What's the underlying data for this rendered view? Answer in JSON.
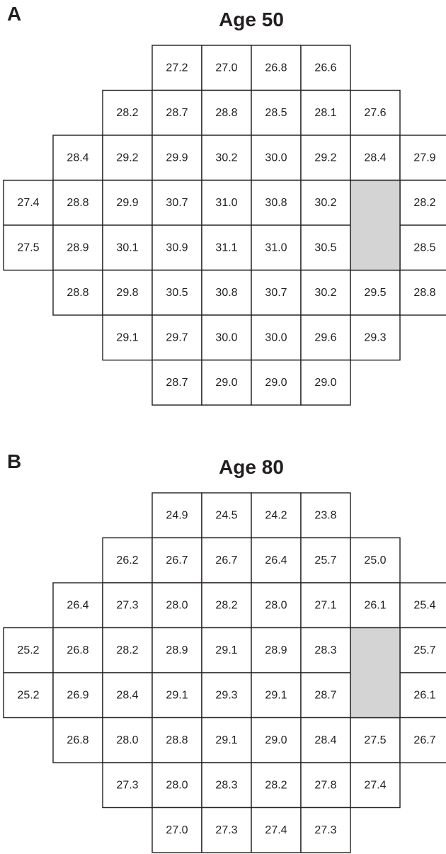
{
  "panels": [
    {
      "letter": "A",
      "title": "Age 50",
      "rows": [
        [
          null,
          null,
          null,
          "27.2",
          "27.0",
          "26.8",
          "26.6",
          null,
          null
        ],
        [
          null,
          null,
          "28.2",
          "28.7",
          "28.8",
          "28.5",
          "28.1",
          "27.6",
          null
        ],
        [
          null,
          "28.4",
          "29.2",
          "29.9",
          "30.2",
          "30.0",
          "29.2",
          "28.4",
          "27.9"
        ],
        [
          "27.4",
          "28.8",
          "29.9",
          "30.7",
          "31.0",
          "30.8",
          "30.2",
          "",
          "28.2"
        ],
        [
          "27.5",
          "28.9",
          "30.1",
          "30.9",
          "31.1",
          "31.0",
          "30.5",
          "",
          "28.5"
        ],
        [
          null,
          "28.8",
          "29.8",
          "30.5",
          "30.8",
          "30.7",
          "30.2",
          "29.5",
          "28.8"
        ],
        [
          null,
          null,
          "29.1",
          "29.7",
          "30.0",
          "30.0",
          "29.6",
          "29.3",
          null
        ],
        [
          null,
          null,
          null,
          "28.7",
          "29.0",
          "29.0",
          "29.0",
          null,
          null
        ]
      ]
    },
    {
      "letter": "B",
      "title": "Age 80",
      "rows": [
        [
          null,
          null,
          null,
          "24.9",
          "24.5",
          "24.2",
          "23.8",
          null,
          null
        ],
        [
          null,
          null,
          "26.2",
          "26.7",
          "26.7",
          "26.4",
          "25.7",
          "25.0",
          null
        ],
        [
          null,
          "26.4",
          "27.3",
          "28.0",
          "28.2",
          "28.0",
          "27.1",
          "26.1",
          "25.4"
        ],
        [
          "25.2",
          "26.8",
          "28.2",
          "28.9",
          "29.1",
          "28.9",
          "28.3",
          "",
          "25.7"
        ],
        [
          "25.2",
          "26.9",
          "28.4",
          "29.1",
          "29.3",
          "29.1",
          "28.7",
          "",
          "26.1"
        ],
        [
          null,
          "26.8",
          "28.0",
          "28.8",
          "29.1",
          "29.0",
          "28.4",
          "27.5",
          "26.7"
        ],
        [
          null,
          null,
          "27.3",
          "28.0",
          "28.3",
          "28.2",
          "27.8",
          "27.4",
          null
        ],
        [
          null,
          null,
          null,
          "27.0",
          "27.3",
          "27.4",
          "27.3",
          null,
          null
        ]
      ]
    }
  ],
  "blind_spot": {
    "color": "#d4d4d4",
    "rows": [
      3,
      4
    ],
    "col": 7
  }
}
